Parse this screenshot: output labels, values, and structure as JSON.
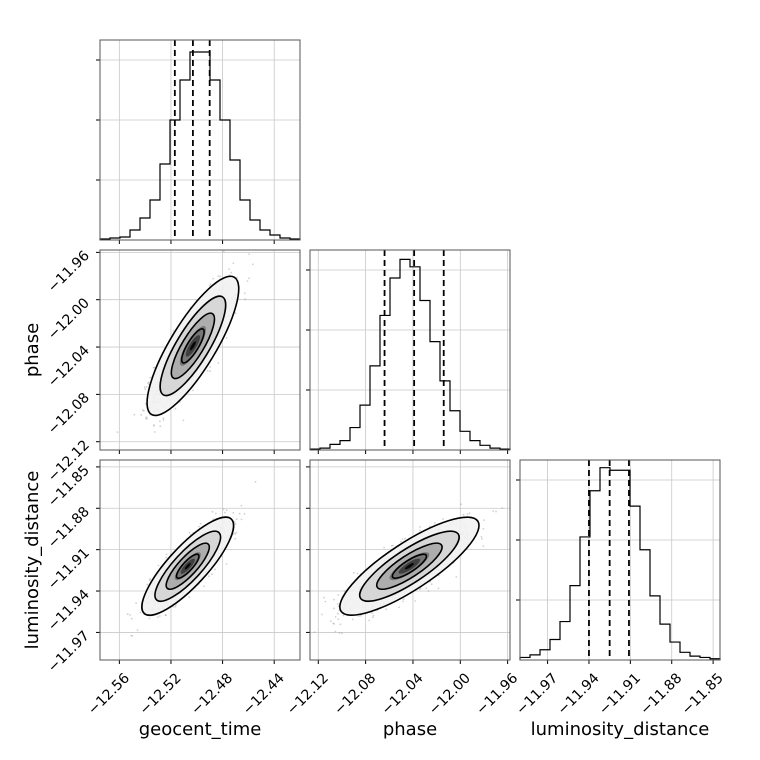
{
  "chart_data": {
    "type": "corner",
    "parameters": [
      "geocent_time",
      "phase",
      "luminosity_distance"
    ],
    "ranges": {
      "geocent_time": [
        -12.575,
        -12.42
      ],
      "phase": [
        -12.127,
        -11.958
      ],
      "luminosity_distance": [
        -11.99,
        -11.845
      ]
    },
    "ticks": {
      "geocent_time": [
        "−12.56",
        "−12.52",
        "−12.48",
        "−12.44"
      ],
      "phase": [
        "−12.12",
        "−12.08",
        "−12.04",
        "−12.00",
        "−11.96"
      ],
      "luminosity_distance": [
        "−11.97",
        "−11.94",
        "−11.91",
        "−11.88",
        "−11.85"
      ]
    },
    "tick_values": {
      "geocent_time": [
        -12.56,
        -12.52,
        -12.48,
        -12.44
      ],
      "phase": [
        -12.12,
        -12.08,
        -12.04,
        -12.0,
        -11.96
      ],
      "luminosity_distance": [
        -11.97,
        -11.94,
        -11.91,
        -11.88,
        -11.85
      ]
    },
    "quantiles": {
      "geocent_time": [
        -12.517,
        -12.503,
        -12.49
      ],
      "phase": [
        -12.064,
        -12.039,
        -12.014
      ],
      "luminosity_distance": [
        -11.94,
        -11.925,
        -11.911
      ]
    },
    "histograms": {
      "geocent_time": [
        0.5,
        1,
        1.5,
        5,
        11,
        20,
        38,
        60,
        80,
        94,
        94,
        80,
        60,
        40,
        20,
        10,
        5,
        2.5,
        1,
        0.5
      ],
      "phase": [
        0.5,
        1,
        3,
        5,
        12,
        24,
        45,
        72,
        92,
        102,
        98,
        80,
        58,
        37,
        21,
        10,
        5,
        2.5,
        1,
        0.5
      ],
      "luminosity_distance": [
        1,
        2,
        4,
        8,
        15,
        29,
        48,
        66,
        75,
        74,
        74,
        60,
        43,
        25,
        14,
        7,
        3,
        1.5,
        1,
        0.5
      ]
    },
    "hist_max": {
      "geocent_time": 100,
      "phase": 107,
      "luminosity_distance": 78
    },
    "covariances": [
      {
        "x": "geocent_time",
        "y": "phase",
        "center": [
          -12.503,
          -12.039
        ],
        "sigma": [
          0.0145,
          0.024
        ],
        "rho": 0.82
      },
      {
        "x": "geocent_time",
        "y": "luminosity_distance",
        "center": [
          -12.507,
          -11.922
        ],
        "sigma": [
          0.0145,
          0.0145
        ],
        "rho": 0.83
      },
      {
        "x": "phase",
        "y": "luminosity_distance",
        "center": [
          -12.043,
          -11.922
        ],
        "sigma": [
          0.024,
          0.0145
        ],
        "rho": 0.83
      }
    ],
    "grid": true,
    "xlabel_bottom": [
      "geocent_time",
      "phase",
      "luminosity_distance"
    ],
    "ylabel_left": [
      "phase",
      "luminosity_distance"
    ]
  }
}
